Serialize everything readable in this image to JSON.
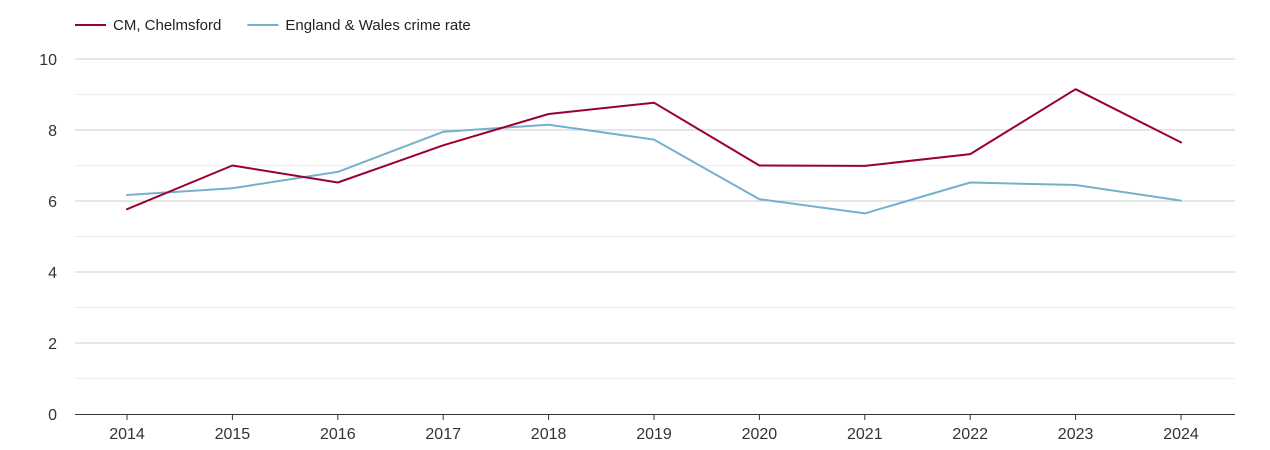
{
  "chart_data": {
    "type": "line",
    "title": "",
    "xlabel": "",
    "ylabel": "",
    "x": [
      "2014",
      "2015",
      "2016",
      "2017",
      "2018",
      "2019",
      "2020",
      "2021",
      "2022",
      "2023",
      "2024"
    ],
    "ylim": [
      0,
      10
    ],
    "y_ticks": [
      "0",
      "2",
      "4",
      "6",
      "8",
      "10"
    ],
    "grid": true,
    "legend_position": "top-left",
    "series": [
      {
        "name": "CM, Chelmsford",
        "color": "#990033",
        "values": [
          5.77,
          7.0,
          6.52,
          7.57,
          8.45,
          8.77,
          7.0,
          6.99,
          7.32,
          9.15,
          7.65
        ]
      },
      {
        "name": "England & Wales crime rate",
        "color": "#75b0cf",
        "values": [
          6.17,
          6.36,
          6.82,
          7.95,
          8.15,
          7.73,
          6.05,
          5.65,
          6.52,
          6.45,
          6.01
        ]
      }
    ]
  }
}
